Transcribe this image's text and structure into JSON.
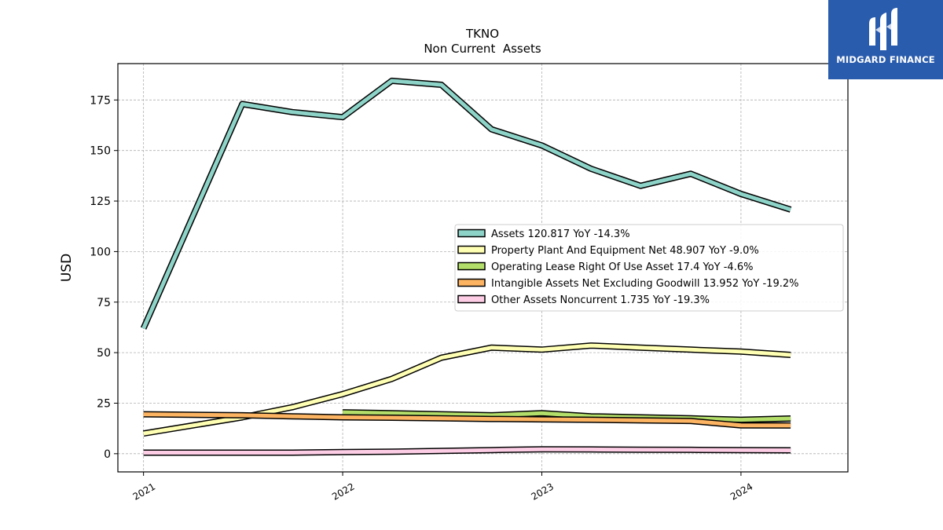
{
  "brand": {
    "name": "MIDGARD FINANCE",
    "bg_color": "#2a5cad",
    "icon": "midgard-m-logo-icon"
  },
  "chart_data": {
    "type": "line",
    "title": "TKNO",
    "subtitle": "Non Current  Assets",
    "xlabel": "",
    "ylabel": "USD",
    "xlim": [
      "2020-11-15",
      "2024-07-15"
    ],
    "ylim": [
      -9,
      193
    ],
    "x_ticks": [
      "2021",
      "2022",
      "2023",
      "2024"
    ],
    "y_ticks": [
      0,
      25,
      50,
      75,
      100,
      125,
      150,
      175
    ],
    "grid": true,
    "legend_position": "center-right",
    "series": [
      {
        "name": "Assets  120.817 YoY -14.3%",
        "color": "#8dd3c7",
        "x": [
          "2021-01-01",
          "2021-07-01",
          "2021-10-01",
          "2022-01-01",
          "2022-04-01",
          "2022-07-01",
          "2022-10-01",
          "2023-01-01",
          "2023-04-01",
          "2023-07-01",
          "2023-10-01",
          "2024-01-01",
          "2024-04-01"
        ],
        "values": [
          62,
          173,
          169,
          166.5,
          184.5,
          182.5,
          160.5,
          152.5,
          141,
          132.5,
          138.5,
          128.5,
          120.8
        ]
      },
      {
        "name": "Property Plant And Equipment Net  48.907 YoY -9.0%",
        "color": "#ffffb3",
        "x": [
          "2021-01-01",
          "2021-07-01",
          "2021-10-01",
          "2022-01-01",
          "2022-04-01",
          "2022-07-01",
          "2022-10-01",
          "2023-01-01",
          "2023-04-01",
          "2023-07-01",
          "2023-10-01",
          "2024-01-01",
          "2024-04-01"
        ],
        "values": [
          10,
          18,
          23,
          29.5,
          37,
          47.5,
          52.5,
          51.5,
          53.5,
          52.5,
          51.5,
          50.5,
          48.9
        ]
      },
      {
        "name": "Operating Lease Right Of Use Asset  17.4 YoY -4.6%",
        "color": "#b3de69",
        "x": [
          "2022-01-01",
          "2022-04-01",
          "2022-07-01",
          "2022-10-01",
          "2023-01-01",
          "2023-04-01",
          "2023-07-01",
          "2023-10-01",
          "2024-01-01",
          "2024-04-01"
        ],
        "values": [
          20.5,
          20,
          19.5,
          19,
          20,
          18.5,
          18,
          17.5,
          16.8,
          17.4
        ]
      },
      {
        "name": "Intangible Assets Net Excluding Goodwill  13.952 YoY -19.2%",
        "color": "#fdb462",
        "x": [
          "2021-01-01",
          "2021-07-01",
          "2021-10-01",
          "2022-01-01",
          "2022-04-01",
          "2022-07-01",
          "2022-10-01",
          "2023-01-01",
          "2023-04-01",
          "2023-07-01",
          "2023-10-01",
          "2024-01-01",
          "2024-04-01"
        ],
        "values": [
          19.5,
          19,
          18.5,
          18,
          17.8,
          17.5,
          17.2,
          17,
          16.8,
          16.5,
          16.2,
          14,
          13.95
        ]
      },
      {
        "name": "Other Assets Noncurrent  1.735 YoY -19.3%",
        "color": "#fccde5",
        "x": [
          "2021-01-01",
          "2021-07-01",
          "2021-10-01",
          "2022-01-01",
          "2022-04-01",
          "2022-07-01",
          "2022-10-01",
          "2023-01-01",
          "2023-04-01",
          "2023-07-01",
          "2023-10-01",
          "2024-01-01",
          "2024-04-01"
        ],
        "values": [
          0.5,
          0.5,
          0.5,
          0.8,
          1,
          1.4,
          1.8,
          2.2,
          2.1,
          2,
          1.9,
          1.8,
          1.7
        ]
      }
    ]
  }
}
